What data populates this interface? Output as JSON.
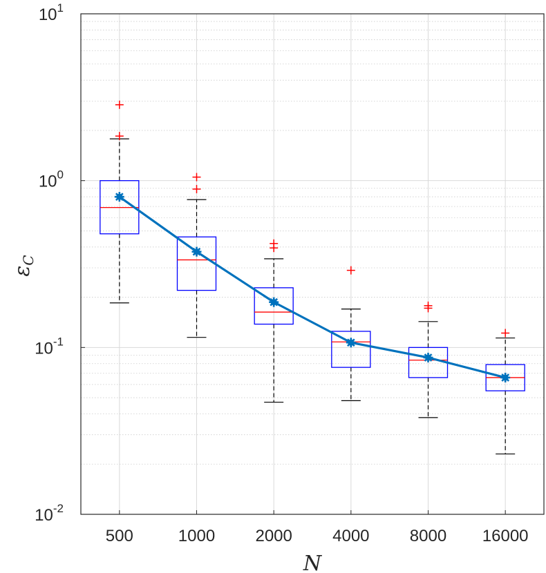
{
  "chart_data": {
    "type": "box",
    "xlabel": "N",
    "ylabel": "ε_C",
    "ylabel_main": "ε",
    "ylabel_sub": "C",
    "yscale": "log",
    "ylim": [
      0.01,
      10
    ],
    "grid": true,
    "categories": [
      "500",
      "1000",
      "2000",
      "4000",
      "8000",
      "16000"
    ],
    "ytick_labels": [
      {
        "base": "10",
        "exp": "-2"
      },
      {
        "base": "10",
        "exp": "-1"
      },
      {
        "base": "10",
        "exp": "0"
      },
      {
        "base": "10",
        "exp": "1"
      }
    ],
    "boxes": [
      {
        "q1": 0.48,
        "median": 0.69,
        "q3": 1.0,
        "whisker_low": 0.185,
        "whisker_high": 1.78,
        "outliers": [
          2.85,
          1.85
        ]
      },
      {
        "q1": 0.22,
        "median": 0.335,
        "q3": 0.46,
        "whisker_low": 0.115,
        "whisker_high": 0.77,
        "outliers": [
          1.05,
          0.89
        ]
      },
      {
        "q1": 0.138,
        "median": 0.163,
        "q3": 0.228,
        "whisker_low": 0.047,
        "whisker_high": 0.34,
        "outliers": [
          0.42,
          0.395
        ]
      },
      {
        "q1": 0.076,
        "median": 0.108,
        "q3": 0.125,
        "whisker_low": 0.048,
        "whisker_high": 0.17,
        "outliers": [
          0.29
        ]
      },
      {
        "q1": 0.066,
        "median": 0.084,
        "q3": 0.1,
        "whisker_low": 0.038,
        "whisker_high": 0.143,
        "outliers": [
          0.178,
          0.172
        ]
      },
      {
        "q1": 0.055,
        "median": 0.066,
        "q3": 0.079,
        "whisker_low": 0.023,
        "whisker_high": 0.114,
        "outliers": [
          0.122
        ]
      }
    ],
    "mean_line": {
      "values": [
        0.8,
        0.375,
        0.187,
        0.107,
        0.087,
        0.066
      ],
      "color": "#0072BD"
    },
    "colors": {
      "box": "#0000ff",
      "median": "#ff0000",
      "outlier": "#ff0000",
      "whisker": "#000000",
      "mean": "#0072BD",
      "grid": "#d9d9d9",
      "axis": "#262626"
    }
  }
}
